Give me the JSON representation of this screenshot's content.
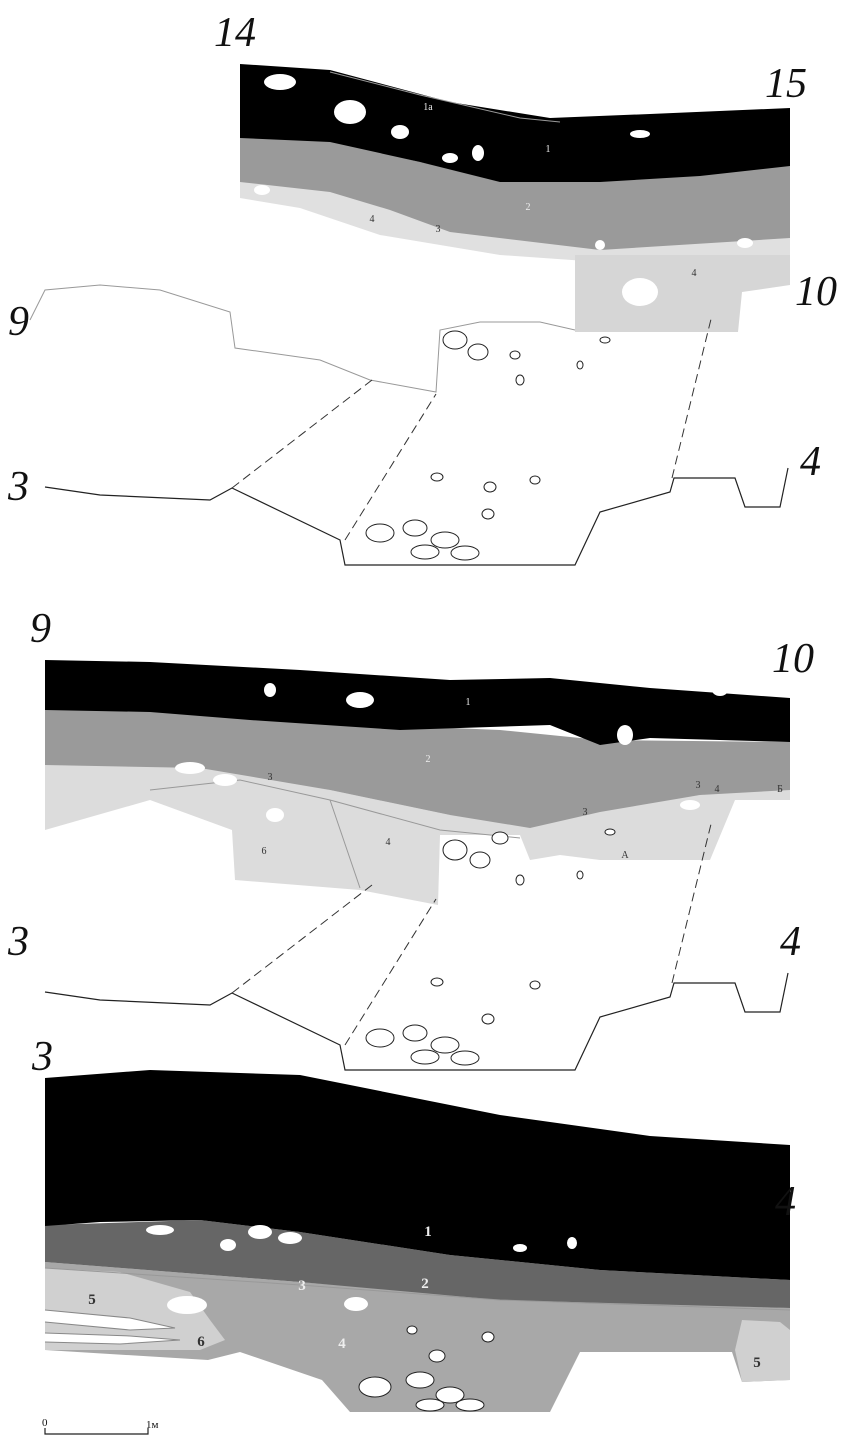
{
  "panels": [
    {
      "corners": [
        "14",
        "15",
        "9",
        "10",
        "3",
        "4"
      ],
      "layers": [
        "1а",
        "1",
        "2",
        "3",
        "4",
        "4"
      ]
    },
    {
      "corners": [
        "9",
        "10",
        "3",
        "4"
      ],
      "layers": [
        "1",
        "2",
        "3",
        "3",
        "3",
        "4",
        "Б",
        "6",
        "4",
        "А"
      ]
    },
    {
      "corners": [
        "3",
        "4"
      ],
      "layers": [
        "1",
        "2",
        "3",
        "5",
        "6",
        "4",
        "5"
      ]
    }
  ],
  "scale": {
    "start": "0",
    "end": "1м"
  }
}
